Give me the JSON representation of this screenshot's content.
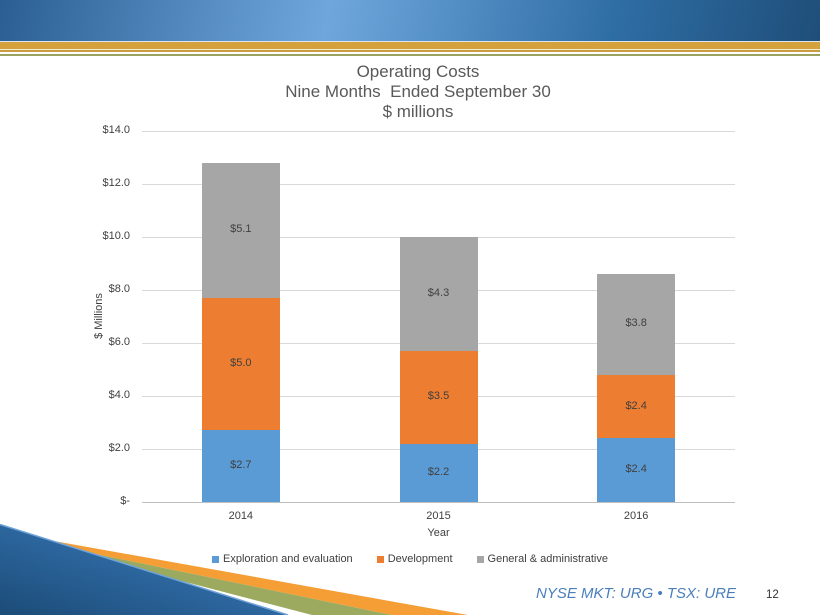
{
  "slide": {
    "footer_ticker": "NYSE MKT: URG • TSX: URE",
    "page_number": "12"
  },
  "chart": {
    "title_lines": {
      "0": "Operating Costs",
      "1": "Nine Months  Ended September 30",
      "2": "$ millions"
    }
  },
  "chart_data": {
    "type": "bar",
    "stacked": true,
    "title": "Operating Costs\nNine Months Ended September 30\n$ millions",
    "xlabel": "Year",
    "ylabel": "$ Millions",
    "categories": [
      "2014",
      "2015",
      "2016"
    ],
    "series": [
      {
        "name": "Exploration and evaluation",
        "color": "#5B9BD5",
        "values": [
          2.7,
          2.2,
          2.4
        ],
        "labels": [
          "$2.7",
          "$2.2",
          "$2.4"
        ]
      },
      {
        "name": "Development",
        "color": "#ED7D31",
        "values": [
          5.0,
          3.5,
          2.4
        ],
        "labels": [
          "$5.0",
          "$3.5",
          "$2.4"
        ]
      },
      {
        "name": "General & administrative",
        "color": "#A6A6A6",
        "values": [
          5.1,
          4.3,
          3.8
        ],
        "labels": [
          "$5.1",
          "$4.3",
          "$3.8"
        ]
      }
    ],
    "totals": [
      12.8,
      10.0,
      8.6
    ],
    "ylim": [
      0,
      14
    ],
    "y_ticks": [
      {
        "value": 0,
        "label": "$-"
      },
      {
        "value": 2,
        "label": "$2.0"
      },
      {
        "value": 4,
        "label": "$4.0"
      },
      {
        "value": 6,
        "label": "$6.0"
      },
      {
        "value": 8,
        "label": "$8.0"
      },
      {
        "value": 10,
        "label": "$10.0"
      },
      {
        "value": 12,
        "label": "$12.0"
      },
      {
        "value": 14,
        "label": "$14.0"
      }
    ],
    "grid": true,
    "legend_position": "bottom"
  },
  "theme": {
    "hdr_a": "#2B5F94",
    "hdr_b": "#6FA7DC",
    "hdr_c": "#2E6DA4",
    "hdr_d": "#1F4E79",
    "stripe_pale": "#DCE6F1",
    "stripe_gold": "#D5A13D",
    "stripe_cream": "#F2ECCE",
    "stripe_gold_dark": "#C99C3F",
    "stripe_olive": "#98A45E",
    "deco_blue_light": "#3D82C6",
    "deco_blue_dark": "#1C4C78",
    "deco_green": "#9CAA60",
    "deco_orange": "#F49E35",
    "ticker_blue": "#4A7EBB",
    "title_gray": "#595959",
    "label_gray": "#404040",
    "grid_gray": "#D9D9D9",
    "axis_gray": "#BFBFBF"
  }
}
